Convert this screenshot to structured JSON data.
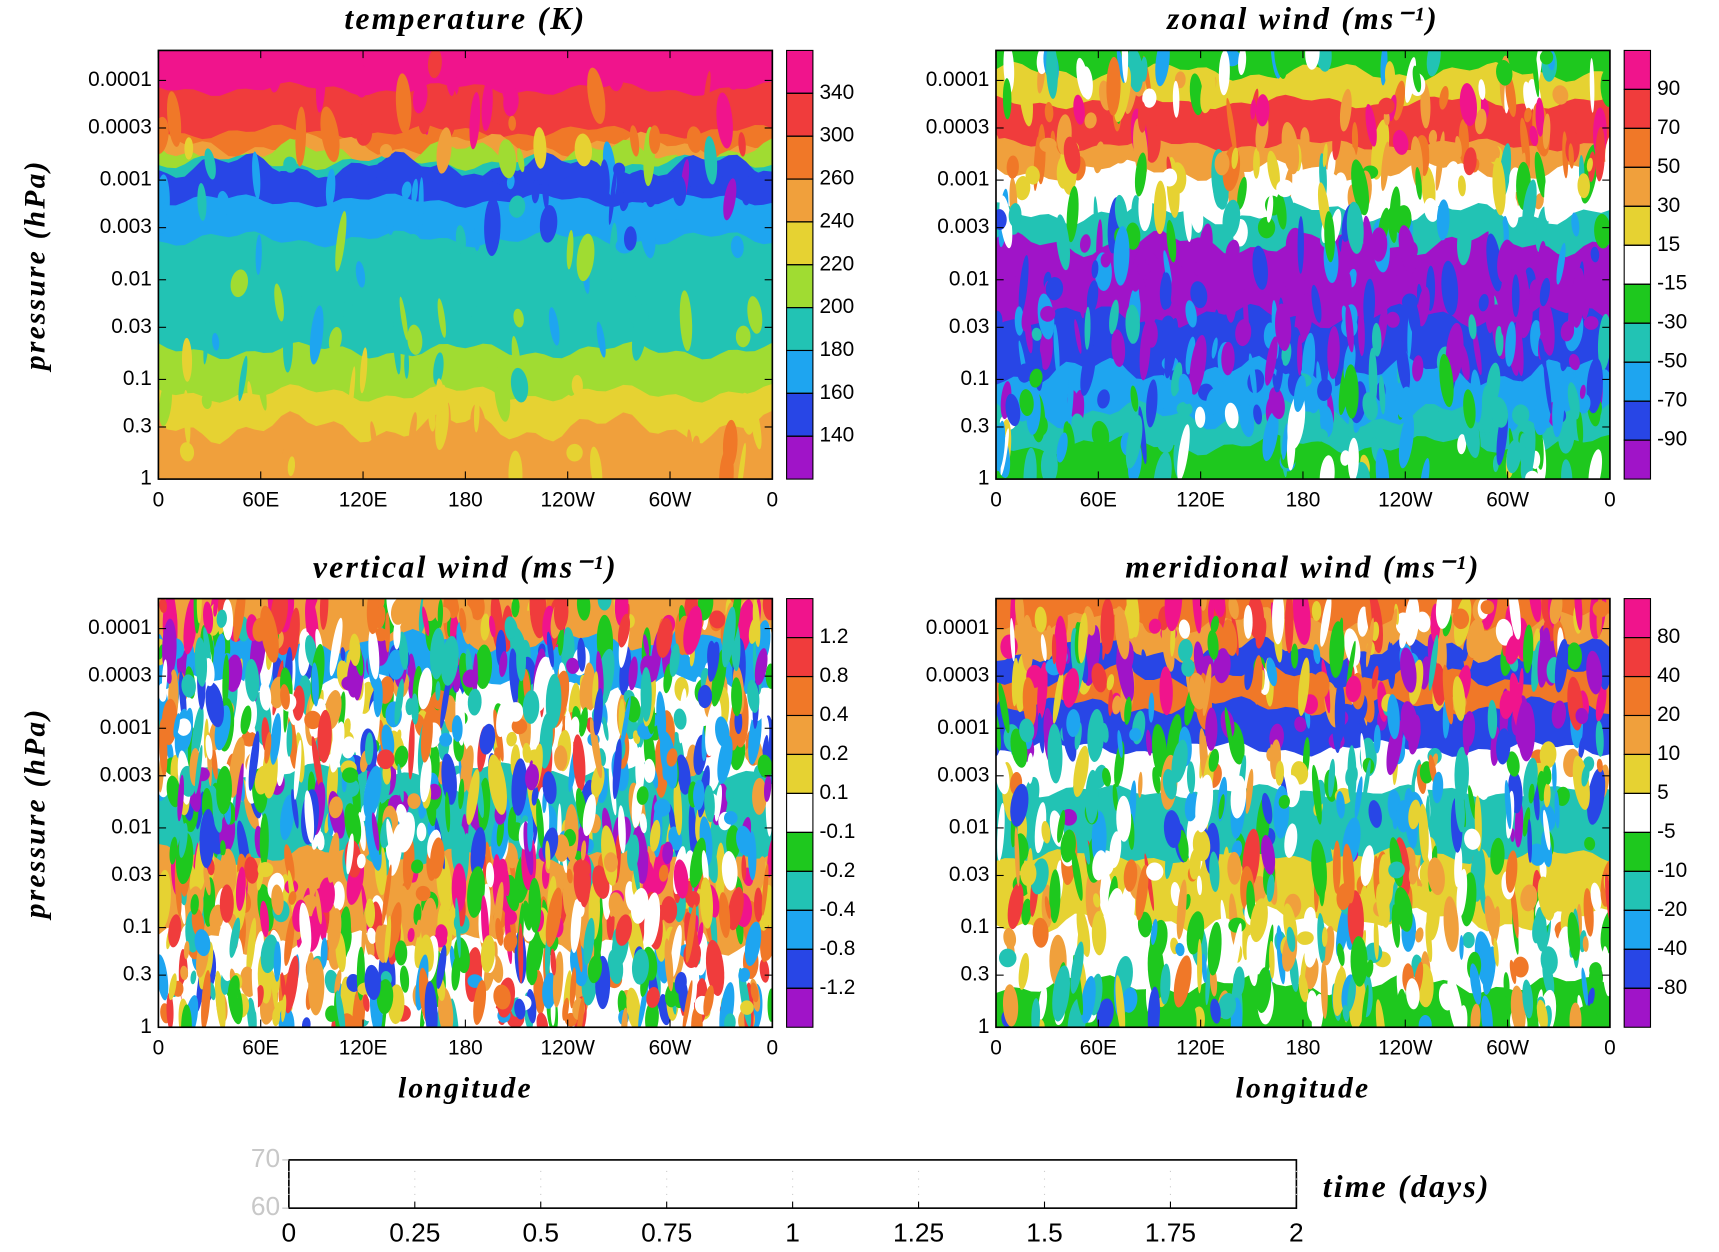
{
  "chart_data": [
    {
      "type": "contour",
      "title": "temperature (K)",
      "y_label": "pressure (hPa)",
      "xlim": [
        0,
        360
      ],
      "xticks": [
        0,
        {
          "value": 60,
          "label": "60E"
        },
        {
          "value": 120,
          "label": "120E"
        },
        180,
        {
          "value": 240,
          "label": "120W"
        },
        {
          "value": 300,
          "label": "60W"
        },
        {
          "value": 360,
          "label": "0"
        }
      ],
      "ylim": [
        1,
        5e-05
      ],
      "yticks": [
        1,
        0.3,
        0.1,
        0.03,
        0.01,
        0.003,
        0.001,
        0.0003,
        0.0001
      ],
      "log_y": true,
      "colorbar": {
        "levels": [
          340,
          300,
          260,
          240,
          220,
          200,
          180,
          160,
          140
        ],
        "colors": [
          "#f0148c",
          "#f03c3c",
          "#f07828",
          "#f0a03c",
          "#e6d232",
          "#a0dc32",
          "#22c3b4",
          "#1ea5f0",
          "#2846e6",
          "#a014c8"
        ]
      }
    },
    {
      "type": "contour",
      "title": "zonal wind (ms⁻¹)",
      "xlim": [
        0,
        360
      ],
      "xticks": [
        0,
        {
          "value": 60,
          "label": "60E"
        },
        {
          "value": 120,
          "label": "120E"
        },
        180,
        {
          "value": 240,
          "label": "120W"
        },
        {
          "value": 300,
          "label": "60W"
        },
        {
          "value": 360,
          "label": "0"
        }
      ],
      "ylim": [
        1,
        5e-05
      ],
      "yticks": [
        1,
        0.3,
        0.1,
        0.03,
        0.01,
        0.003,
        0.001,
        0.0003,
        0.0001
      ],
      "log_y": true,
      "colorbar": {
        "levels": [
          90,
          70,
          50,
          30,
          15,
          -15,
          -30,
          -50,
          -70,
          -90
        ],
        "colors": [
          "#f0148c",
          "#f03c3c",
          "#f07828",
          "#f0a03c",
          "#e6d232",
          "#ffffff",
          "#1ec81e",
          "#22c3b4",
          "#1ea5f0",
          "#2846e6",
          "#a014c8"
        ]
      }
    },
    {
      "type": "contour",
      "title": "vertical wind (ms⁻¹)",
      "y_label": "pressure (hPa)",
      "x_label": "longitude",
      "xlim": [
        0,
        360
      ],
      "xticks": [
        0,
        {
          "value": 60,
          "label": "60E"
        },
        {
          "value": 120,
          "label": "120E"
        },
        180,
        {
          "value": 240,
          "label": "120W"
        },
        {
          "value": 300,
          "label": "60W"
        },
        {
          "value": 360,
          "label": "0"
        }
      ],
      "ylim": [
        1,
        5e-05
      ],
      "yticks": [
        1,
        0.3,
        0.1,
        0.03,
        0.01,
        0.003,
        0.001,
        0.0003,
        0.0001
      ],
      "log_y": true,
      "colorbar": {
        "levels": [
          1.2,
          0.8,
          0.4,
          0.2,
          0.1,
          -0.1,
          -0.2,
          -0.4,
          -0.8,
          -1.2
        ],
        "colors": [
          "#f0148c",
          "#f03c3c",
          "#f07828",
          "#f0a03c",
          "#e6d232",
          "#ffffff",
          "#1ec81e",
          "#22c3b4",
          "#1ea5f0",
          "#2846e6",
          "#a014c8"
        ]
      }
    },
    {
      "type": "contour",
      "title": "meridional wind (ms⁻¹)",
      "x_label": "longitude",
      "xlim": [
        0,
        360
      ],
      "xticks": [
        0,
        {
          "value": 60,
          "label": "60E"
        },
        {
          "value": 120,
          "label": "120E"
        },
        180,
        {
          "value": 240,
          "label": "120W"
        },
        {
          "value": 300,
          "label": "60W"
        },
        {
          "value": 360,
          "label": "0"
        }
      ],
      "ylim": [
        1,
        5e-05
      ],
      "yticks": [
        1,
        0.3,
        0.1,
        0.03,
        0.01,
        0.003,
        0.001,
        0.0003,
        0.0001
      ],
      "log_y": true,
      "colorbar": {
        "levels": [
          80,
          40,
          20,
          10,
          5,
          -5,
          -10,
          -20,
          -40,
          -80
        ],
        "colors": [
          "#f0148c",
          "#f03c3c",
          "#f07828",
          "#f0a03c",
          "#e6d232",
          "#ffffff",
          "#1ec81e",
          "#22c3b4",
          "#1ea5f0",
          "#2846e6",
          "#a014c8"
        ]
      }
    },
    {
      "type": "timeline",
      "x_label": "time (days)",
      "xlim": [
        0,
        2
      ],
      "xticks": [
        0,
        0.25,
        0.5,
        0.75,
        1,
        1.25,
        1.5,
        1.75,
        2
      ],
      "ylim": [
        60,
        70
      ],
      "yticks": [
        60,
        70
      ]
    }
  ]
}
